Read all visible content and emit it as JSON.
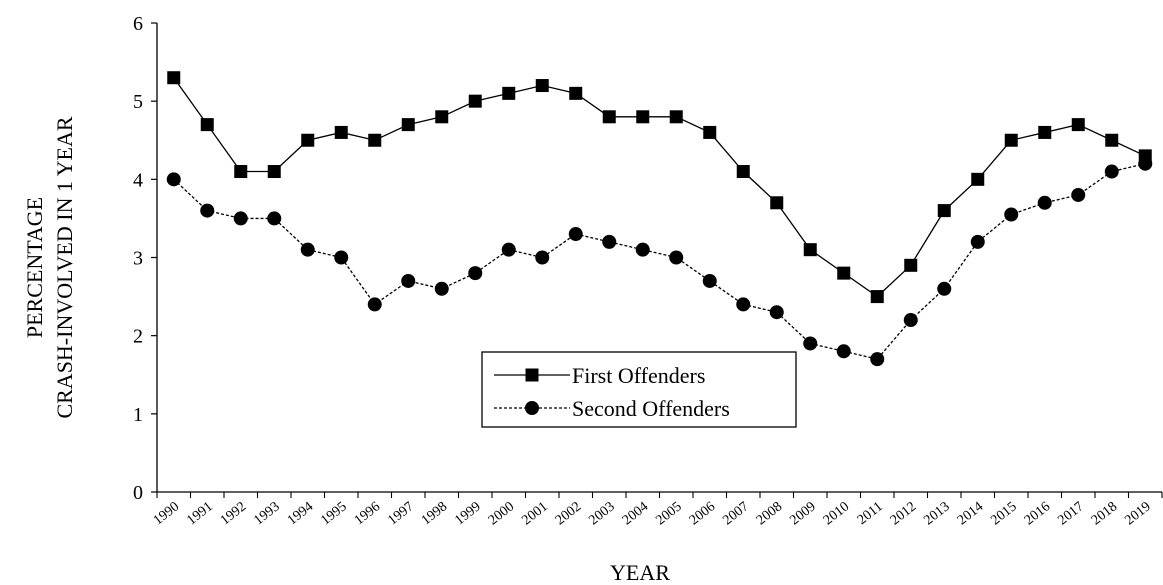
{
  "chart_data": {
    "type": "line",
    "title": "",
    "xlabel": "YEAR",
    "ylabel_lines": [
      "PERCENTAGE",
      "CRASH-INVOLVED IN 1 YEAR"
    ],
    "ylim": [
      0,
      6
    ],
    "yticks": [
      "0",
      "1",
      "2",
      "3",
      "4",
      "5",
      "6"
    ],
    "categories": [
      "1990",
      "1991",
      "1992",
      "1993",
      "1994",
      "1995",
      "1996",
      "1997",
      "1998",
      "1999",
      "2000",
      "2001",
      "2002",
      "2003",
      "2004",
      "2005",
      "2006",
      "2007",
      "2008",
      "2009",
      "2010",
      "2011",
      "2012",
      "2013",
      "2014",
      "2015",
      "2016",
      "2017",
      "2018",
      "2019"
    ],
    "grid": false,
    "legend_position": "center",
    "series": [
      {
        "name": "First Offenders",
        "marker": "square",
        "line_style": "solid",
        "color": "#000000",
        "values": [
          5.3,
          4.7,
          4.1,
          4.1,
          4.5,
          4.6,
          4.5,
          4.7,
          4.8,
          5.0,
          5.1,
          5.2,
          5.1,
          4.8,
          4.8,
          4.8,
          4.6,
          4.1,
          3.7,
          3.1,
          2.8,
          2.5,
          2.9,
          3.6,
          4.0,
          4.5,
          4.6,
          4.7,
          4.5,
          4.3
        ]
      },
      {
        "name": "Second Offenders",
        "marker": "circle",
        "line_style": "dashed",
        "color": "#000000",
        "values": [
          4.0,
          3.6,
          3.5,
          3.5,
          3.1,
          3.0,
          2.4,
          2.7,
          2.6,
          2.8,
          3.1,
          3.0,
          3.3,
          3.2,
          3.1,
          3.0,
          2.7,
          2.4,
          2.3,
          1.9,
          1.8,
          1.7,
          2.2,
          2.6,
          3.2,
          3.55,
          3.7,
          3.8,
          4.1,
          4.2
        ]
      }
    ]
  }
}
